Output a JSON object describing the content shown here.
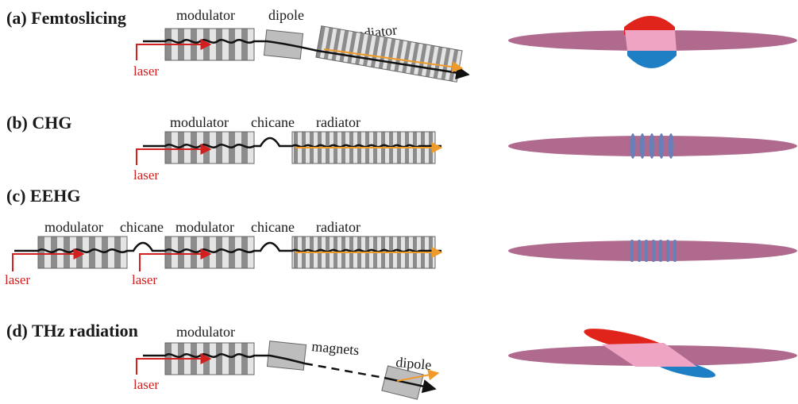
{
  "colors": {
    "laser": "#d22020",
    "radiation": "#f09a2a",
    "beam_path": "#111111",
    "bunch": "#b06a8e",
    "energy_up": "#e0241c",
    "energy_down": "#1f7fc4",
    "overlap": "#f0a4c4",
    "undulator_dark": "#8c8c8c",
    "undulator_light": "#e4e4e4"
  },
  "panels": [
    {
      "title": "(a) Femtoslicing",
      "labels": {
        "modulator": "modulator",
        "dipole": "dipole",
        "radiator": "radiator",
        "laser": "laser"
      }
    },
    {
      "title": "(b) CHG",
      "labels": {
        "modulator": "modulator",
        "chicane": "chicane",
        "radiator": "radiator",
        "laser": "laser"
      }
    },
    {
      "title": "(c) EEHG",
      "labels": {
        "modulator1": "modulator",
        "chicane1": "chicane",
        "modulator2": "modulator",
        "chicane2": "chicane",
        "radiator": "radiator",
        "laser1": "laser",
        "laser2": "laser"
      }
    },
    {
      "title": "(d) THz radiation",
      "labels": {
        "modulator": "modulator",
        "magnets": "magnets",
        "dipole": "dipole",
        "laser": "laser"
      }
    }
  ]
}
